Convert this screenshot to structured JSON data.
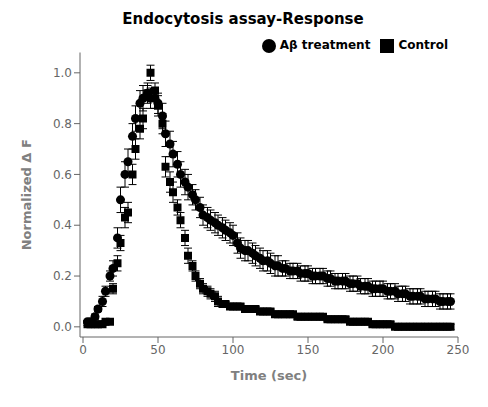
{
  "chart_data": {
    "type": "scatter",
    "title": "Endocytosis assay-Response",
    "xlabel": "Time (sec)",
    "ylabel": "Normalized Δ F",
    "xlim": [
      -2,
      250
    ],
    "ylim": [
      -0.04,
      1.08
    ],
    "xticks": [
      0,
      50,
      100,
      150,
      200,
      250
    ],
    "yticks": [
      {
        "value": 0.0,
        "label": "0.0"
      },
      0.2,
      0.4,
      0.6,
      0.8,
      {
        "value": 1.0,
        "label": "1.0"
      }
    ],
    "grid": false,
    "legend": "upper right",
    "x": [
      3,
      5,
      8,
      10,
      13,
      15,
      18,
      20,
      23,
      25,
      28,
      30,
      33,
      35,
      38,
      40,
      43,
      45,
      48,
      50,
      53,
      55,
      58,
      60,
      63,
      65,
      68,
      70,
      73,
      75,
      78,
      80,
      83,
      85,
      88,
      90,
      93,
      95,
      98,
      100,
      103,
      105,
      108,
      110,
      113,
      115,
      118,
      120,
      123,
      125,
      128,
      130,
      133,
      135,
      138,
      140,
      143,
      145,
      148,
      150,
      153,
      155,
      158,
      160,
      163,
      165,
      168,
      170,
      173,
      175,
      178,
      180,
      183,
      185,
      188,
      190,
      193,
      195,
      198,
      200,
      203,
      205,
      208,
      210,
      213,
      215,
      218,
      220,
      223,
      225,
      228,
      230,
      233,
      235,
      238,
      240,
      243,
      245
    ],
    "series": [
      {
        "name": "Control",
        "color": "#000000",
        "marker": "square",
        "values": [
          0.01,
          0.01,
          0.01,
          0.01,
          0.01,
          0.02,
          0.02,
          0.15,
          0.25,
          0.33,
          0.43,
          0.45,
          0.6,
          0.7,
          0.78,
          0.82,
          0.92,
          1.0,
          0.93,
          0.87,
          0.8,
          0.63,
          0.57,
          0.53,
          0.47,
          0.42,
          0.35,
          0.28,
          0.24,
          0.2,
          0.17,
          0.15,
          0.14,
          0.13,
          0.12,
          0.1,
          0.09,
          0.09,
          0.08,
          0.08,
          0.08,
          0.08,
          0.07,
          0.07,
          0.07,
          0.07,
          0.06,
          0.06,
          0.06,
          0.06,
          0.05,
          0.05,
          0.05,
          0.05,
          0.05,
          0.05,
          0.04,
          0.04,
          0.04,
          0.04,
          0.04,
          0.04,
          0.04,
          0.04,
          0.03,
          0.03,
          0.03,
          0.03,
          0.03,
          0.03,
          0.02,
          0.02,
          0.02,
          0.02,
          0.02,
          0.02,
          0.01,
          0.01,
          0.01,
          0.01,
          0.01,
          0.01,
          0.0,
          0.0,
          0.0,
          0.0,
          0.0,
          0.0,
          0.0,
          0.0,
          0.0,
          0.0,
          0.0,
          0.0,
          0.0,
          0.0,
          0.0,
          0.0
        ],
        "yerr": [
          0.005,
          0.005,
          0.005,
          0.005,
          0.005,
          0.005,
          0.005,
          0.02,
          0.03,
          0.03,
          0.04,
          0.04,
          0.04,
          0.04,
          0.04,
          0.04,
          0.03,
          0.03,
          0.03,
          0.04,
          0.04,
          0.04,
          0.04,
          0.04,
          0.03,
          0.03,
          0.03,
          0.03,
          0.02,
          0.02,
          0.02,
          0.02,
          0.02,
          0.02,
          0.02,
          0.02,
          0.01,
          0.01,
          0.01,
          0.01,
          0.01,
          0.01,
          0.01,
          0.01,
          0.01,
          0.01,
          0.01,
          0.01,
          0.01,
          0.01,
          0.01,
          0.01,
          0.01,
          0.01,
          0.01,
          0.01,
          0.01,
          0.01,
          0.01,
          0.01,
          0.01,
          0.01,
          0.01,
          0.01,
          0.01,
          0.01,
          0.01,
          0.01,
          0.01,
          0.01,
          0.01,
          0.01,
          0.01,
          0.01,
          0.01,
          0.01,
          0.01,
          0.01,
          0.01,
          0.01,
          0.01,
          0.01,
          0.01,
          0.01,
          0.01,
          0.01,
          0.01,
          0.01,
          0.01,
          0.01,
          0.01,
          0.01,
          0.01,
          0.01,
          0.01,
          0.01,
          0.01,
          0.01
        ]
      },
      {
        "name": "Aβ  treatment",
        "color": "#000000",
        "marker": "circle",
        "values": [
          0.02,
          0.02,
          0.04,
          0.07,
          0.1,
          0.14,
          0.2,
          0.23,
          0.35,
          0.5,
          0.6,
          0.65,
          0.75,
          0.82,
          0.88,
          0.9,
          0.92,
          0.9,
          0.9,
          0.88,
          0.83,
          0.76,
          0.72,
          0.68,
          0.64,
          0.6,
          0.57,
          0.55,
          0.52,
          0.5,
          0.47,
          0.44,
          0.43,
          0.42,
          0.41,
          0.4,
          0.39,
          0.38,
          0.37,
          0.36,
          0.33,
          0.31,
          0.3,
          0.3,
          0.29,
          0.28,
          0.27,
          0.26,
          0.26,
          0.25,
          0.24,
          0.24,
          0.23,
          0.23,
          0.22,
          0.22,
          0.22,
          0.21,
          0.21,
          0.21,
          0.2,
          0.2,
          0.2,
          0.2,
          0.19,
          0.19,
          0.18,
          0.18,
          0.18,
          0.18,
          0.17,
          0.17,
          0.17,
          0.16,
          0.16,
          0.16,
          0.15,
          0.15,
          0.15,
          0.15,
          0.14,
          0.14,
          0.14,
          0.13,
          0.13,
          0.13,
          0.12,
          0.12,
          0.12,
          0.12,
          0.11,
          0.11,
          0.11,
          0.11,
          0.1,
          0.1,
          0.1,
          0.1
        ],
        "yerr": [
          0.005,
          0.005,
          0.01,
          0.01,
          0.02,
          0.02,
          0.02,
          0.03,
          0.04,
          0.05,
          0.05,
          0.05,
          0.05,
          0.05,
          0.05,
          0.05,
          0.04,
          0.04,
          0.04,
          0.04,
          0.05,
          0.05,
          0.05,
          0.05,
          0.05,
          0.05,
          0.05,
          0.05,
          0.04,
          0.04,
          0.04,
          0.04,
          0.04,
          0.04,
          0.04,
          0.04,
          0.04,
          0.04,
          0.04,
          0.04,
          0.04,
          0.04,
          0.04,
          0.04,
          0.04,
          0.04,
          0.04,
          0.04,
          0.04,
          0.04,
          0.04,
          0.04,
          0.03,
          0.03,
          0.03,
          0.03,
          0.03,
          0.03,
          0.03,
          0.03,
          0.03,
          0.03,
          0.03,
          0.03,
          0.03,
          0.03,
          0.03,
          0.03,
          0.03,
          0.03,
          0.03,
          0.03,
          0.03,
          0.03,
          0.03,
          0.03,
          0.03,
          0.03,
          0.03,
          0.03,
          0.03,
          0.03,
          0.03,
          0.03,
          0.03,
          0.03,
          0.03,
          0.03,
          0.03,
          0.03,
          0.03,
          0.03,
          0.03,
          0.03,
          0.03,
          0.03,
          0.03,
          0.03
        ]
      }
    ]
  }
}
